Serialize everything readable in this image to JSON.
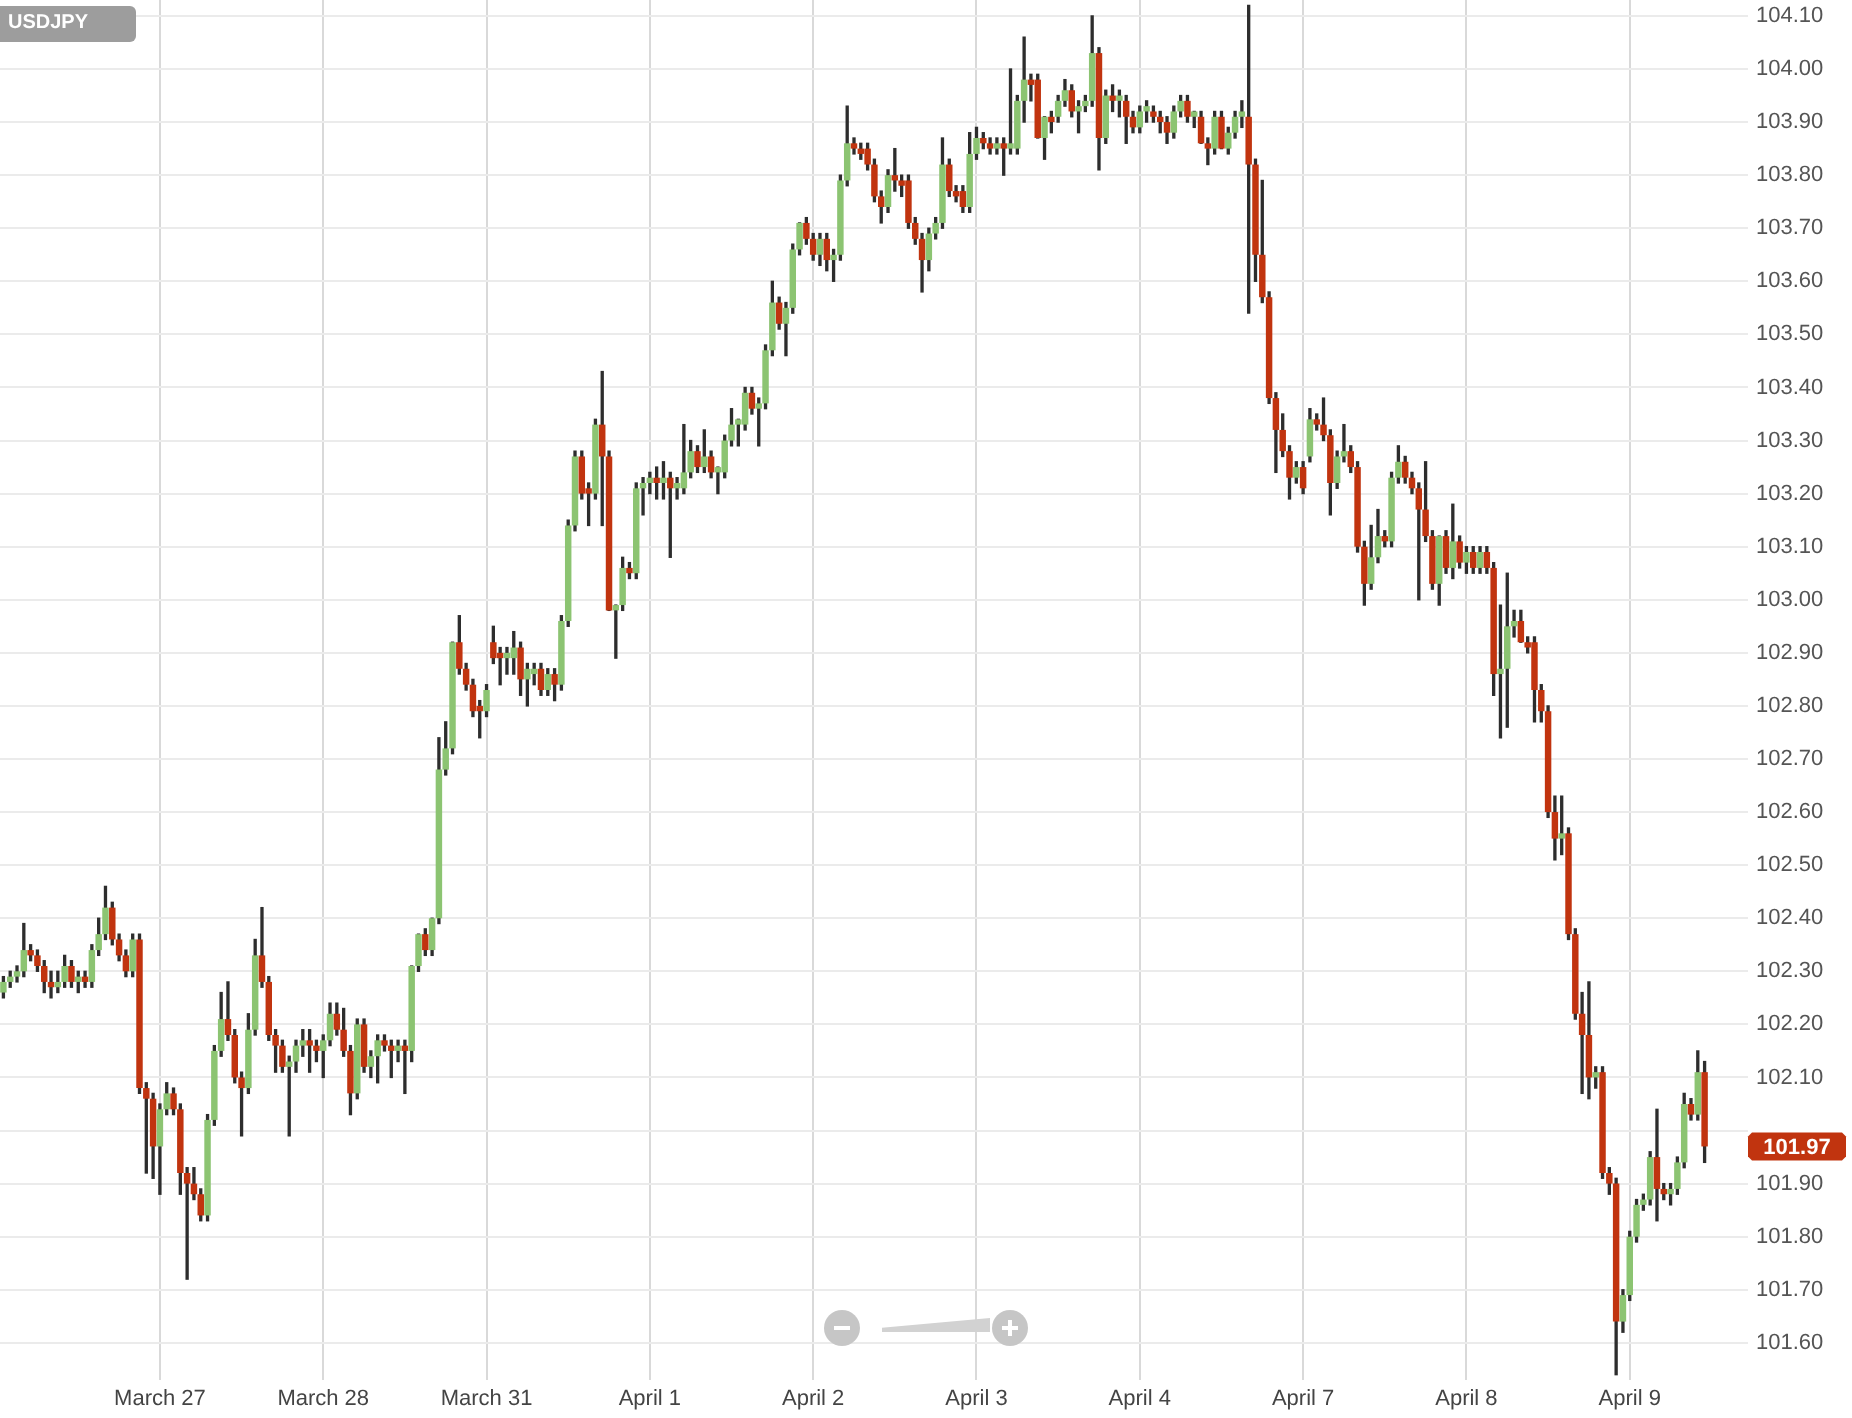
{
  "chart_data": {
    "type": "candlestick",
    "title": "USDJPY",
    "categories": [
      null,
      null,
      null,
      null,
      null,
      null,
      null,
      null,
      null,
      null,
      null,
      null,
      null,
      null,
      null,
      null,
      null,
      null,
      null,
      null,
      null,
      null,
      null,
      "March 27",
      null,
      null,
      null,
      null,
      null,
      null,
      null,
      null,
      null,
      null,
      null,
      null,
      null,
      null,
      null,
      null,
      null,
      null,
      null,
      null,
      null,
      null,
      null,
      "March 28",
      null,
      null,
      null,
      null,
      null,
      null,
      null,
      null,
      null,
      null,
      null,
      null,
      null,
      null,
      null,
      null,
      null,
      null,
      null,
      null,
      null,
      null,
      null,
      "March 31",
      null,
      null,
      null,
      null,
      null,
      null,
      null,
      null,
      null,
      null,
      null,
      null,
      null,
      null,
      null,
      null,
      null,
      null,
      null,
      null,
      null,
      null,
      null,
      "April 1",
      null,
      null,
      null,
      null,
      null,
      null,
      null,
      null,
      null,
      null,
      null,
      null,
      null,
      null,
      null,
      null,
      null,
      null,
      null,
      null,
      null,
      null,
      null,
      "April 2",
      null,
      null,
      null,
      null,
      null,
      null,
      null,
      null,
      null,
      null,
      null,
      null,
      null,
      null,
      null,
      null,
      null,
      null,
      null,
      null,
      null,
      null,
      null,
      "April 3",
      null,
      null,
      null,
      null,
      null,
      null,
      null,
      null,
      null,
      null,
      null,
      null,
      null,
      null,
      null,
      null,
      null,
      null,
      null,
      null,
      null,
      null,
      null,
      "April 4",
      null,
      null,
      null,
      null,
      null,
      null,
      null,
      null,
      null,
      null,
      null,
      null,
      null,
      null,
      null,
      null,
      null,
      null,
      null,
      null,
      null,
      null,
      null,
      "April 7",
      null,
      null,
      null,
      null,
      null,
      null,
      null,
      null,
      null,
      null,
      null,
      null,
      null,
      null,
      null,
      null,
      null,
      null,
      null,
      null,
      null,
      null,
      null,
      "April 8",
      null,
      null,
      null,
      null,
      null,
      null,
      null,
      null,
      null,
      null,
      null,
      null,
      null,
      null,
      null,
      null,
      null,
      null,
      null,
      null,
      null,
      null,
      null,
      "April 9",
      null,
      null,
      null,
      null,
      null,
      null,
      null,
      null,
      null,
      null,
      null
    ],
    "ohlc": [
      [
        102.26,
        102.29,
        102.25,
        102.28
      ],
      [
        102.28,
        102.3,
        102.27,
        102.29
      ],
      [
        102.29,
        102.31,
        102.28,
        102.3
      ],
      [
        102.3,
        102.39,
        102.29,
        102.34
      ],
      [
        102.34,
        102.35,
        102.32,
        102.33
      ],
      [
        102.33,
        102.34,
        102.3,
        102.31
      ],
      [
        102.31,
        102.32,
        102.26,
        102.28
      ],
      [
        102.28,
        102.3,
        102.25,
        102.27
      ],
      [
        102.27,
        102.3,
        102.26,
        102.28
      ],
      [
        102.28,
        102.33,
        102.27,
        102.31
      ],
      [
        102.31,
        102.32,
        102.27,
        102.28
      ],
      [
        102.28,
        102.3,
        102.26,
        102.29
      ],
      [
        102.29,
        102.3,
        102.27,
        102.28
      ],
      [
        102.28,
        102.35,
        102.27,
        102.34
      ],
      [
        102.34,
        102.4,
        102.33,
        102.37
      ],
      [
        102.37,
        102.46,
        102.36,
        102.42
      ],
      [
        102.42,
        102.43,
        102.35,
        102.36
      ],
      [
        102.36,
        102.37,
        102.32,
        102.33
      ],
      [
        102.33,
        102.34,
        102.29,
        102.3
      ],
      [
        102.3,
        102.37,
        102.29,
        102.36
      ],
      [
        102.36,
        102.37,
        102.07,
        102.08
      ],
      [
        102.08,
        102.09,
        101.92,
        102.06
      ],
      [
        102.06,
        102.07,
        101.91,
        101.97
      ],
      [
        101.97,
        102.05,
        101.88,
        102.04
      ],
      [
        102.04,
        102.09,
        102.03,
        102.07
      ],
      [
        102.07,
        102.08,
        102.03,
        102.04
      ],
      [
        102.04,
        102.05,
        101.88,
        101.92
      ],
      [
        101.92,
        101.93,
        101.72,
        101.9
      ],
      [
        101.9,
        101.93,
        101.87,
        101.88
      ],
      [
        101.88,
        101.89,
        101.83,
        101.84
      ],
      [
        101.84,
        102.03,
        101.83,
        102.02
      ],
      [
        102.02,
        102.16,
        102.01,
        102.15
      ],
      [
        102.15,
        102.26,
        102.14,
        102.21
      ],
      [
        102.21,
        102.28,
        102.17,
        102.18
      ],
      [
        102.18,
        102.19,
        102.09,
        102.1
      ],
      [
        102.1,
        102.11,
        101.99,
        102.08
      ],
      [
        102.08,
        102.22,
        102.07,
        102.19
      ],
      [
        102.19,
        102.36,
        102.18,
        102.33
      ],
      [
        102.33,
        102.42,
        102.27,
        102.28
      ],
      [
        102.28,
        102.29,
        102.17,
        102.18
      ],
      [
        102.18,
        102.19,
        102.11,
        102.16
      ],
      [
        102.16,
        102.17,
        102.11,
        102.12
      ],
      [
        102.12,
        102.14,
        101.99,
        102.13
      ],
      [
        102.13,
        102.17,
        102.11,
        102.16
      ],
      [
        102.16,
        102.19,
        102.14,
        102.17
      ],
      [
        102.17,
        102.19,
        102.11,
        102.16
      ],
      [
        102.16,
        102.17,
        102.13,
        102.15
      ],
      [
        102.15,
        102.18,
        102.1,
        102.17
      ],
      [
        102.17,
        102.24,
        102.16,
        102.22
      ],
      [
        102.22,
        102.24,
        102.18,
        102.19
      ],
      [
        102.19,
        102.23,
        102.14,
        102.15
      ],
      [
        102.15,
        102.16,
        102.03,
        102.07
      ],
      [
        102.07,
        102.21,
        102.06,
        102.2
      ],
      [
        102.2,
        102.21,
        102.11,
        102.12
      ],
      [
        102.12,
        102.15,
        102.1,
        102.14
      ],
      [
        102.14,
        102.18,
        102.09,
        102.17
      ],
      [
        102.17,
        102.18,
        102.15,
        102.16
      ],
      [
        102.16,
        102.17,
        102.1,
        102.15
      ],
      [
        102.15,
        102.17,
        102.13,
        102.16
      ],
      [
        102.16,
        102.17,
        102.07,
        102.15
      ],
      [
        102.15,
        102.31,
        102.13,
        102.31
      ],
      [
        102.31,
        102.37,
        102.3,
        102.37
      ],
      [
        102.37,
        102.38,
        102.33,
        102.34
      ],
      [
        102.34,
        102.4,
        102.33,
        102.4
      ],
      [
        102.4,
        102.74,
        102.39,
        102.68
      ],
      [
        102.68,
        102.77,
        102.67,
        102.72
      ],
      [
        102.72,
        102.92,
        102.71,
        102.92
      ],
      [
        102.92,
        102.97,
        102.86,
        102.87
      ],
      [
        102.87,
        102.88,
        102.83,
        102.84
      ],
      [
        102.84,
        102.85,
        102.78,
        102.79
      ],
      [
        102.8,
        102.81,
        102.74,
        102.79
      ],
      [
        102.79,
        102.84,
        102.78,
        102.83
      ],
      [
        102.92,
        102.95,
        102.88,
        102.89
      ],
      [
        102.9,
        102.91,
        102.84,
        102.89
      ],
      [
        102.89,
        102.91,
        102.86,
        102.9
      ],
      [
        102.89,
        102.94,
        102.86,
        102.91
      ],
      [
        102.91,
        102.92,
        102.82,
        102.85
      ],
      [
        102.85,
        102.88,
        102.8,
        102.87
      ],
      [
        102.86,
        102.88,
        102.84,
        102.87
      ],
      [
        102.87,
        102.88,
        102.82,
        102.83
      ],
      [
        102.83,
        102.87,
        102.82,
        102.86
      ],
      [
        102.86,
        102.87,
        102.81,
        102.84
      ],
      [
        102.84,
        102.97,
        102.83,
        102.96
      ],
      [
        102.96,
        103.15,
        102.95,
        103.14
      ],
      [
        103.14,
        103.28,
        103.13,
        103.27
      ],
      [
        103.27,
        103.28,
        103.19,
        103.2
      ],
      [
        103.21,
        103.22,
        103.14,
        103.2
      ],
      [
        103.2,
        103.34,
        103.19,
        103.33
      ],
      [
        103.33,
        103.43,
        103.14,
        103.27
      ],
      [
        103.27,
        103.28,
        102.98,
        102.98
      ],
      [
        102.98,
        102.99,
        102.89,
        102.99
      ],
      [
        102.99,
        103.08,
        102.98,
        103.06
      ],
      [
        103.06,
        103.07,
        103.04,
        103.05
      ],
      [
        103.05,
        103.22,
        103.04,
        103.21
      ],
      [
        103.21,
        103.23,
        103.16,
        103.22
      ],
      [
        103.22,
        103.24,
        103.2,
        103.23
      ],
      [
        103.23,
        103.25,
        103.19,
        103.22
      ],
      [
        103.22,
        103.26,
        103.19,
        103.23
      ],
      [
        103.23,
        103.24,
        103.08,
        103.21
      ],
      [
        103.21,
        103.23,
        103.19,
        103.22
      ],
      [
        103.21,
        103.33,
        103.2,
        103.24
      ],
      [
        103.24,
        103.3,
        103.23,
        103.28
      ],
      [
        103.28,
        103.29,
        103.24,
        103.25
      ],
      [
        103.25,
        103.32,
        103.24,
        103.27
      ],
      [
        103.27,
        103.28,
        103.23,
        103.24
      ],
      [
        103.24,
        103.25,
        103.2,
        103.25
      ],
      [
        103.24,
        103.31,
        103.23,
        103.3
      ],
      [
        103.3,
        103.36,
        103.29,
        103.33
      ],
      [
        103.33,
        103.34,
        103.29,
        103.34
      ],
      [
        103.33,
        103.4,
        103.32,
        103.39
      ],
      [
        103.39,
        103.4,
        103.35,
        103.36
      ],
      [
        103.36,
        103.38,
        103.29,
        103.37
      ],
      [
        103.37,
        103.48,
        103.36,
        103.47
      ],
      [
        103.47,
        103.6,
        103.46,
        103.56
      ],
      [
        103.56,
        103.57,
        103.51,
        103.52
      ],
      [
        103.52,
        103.56,
        103.46,
        103.55
      ],
      [
        103.55,
        103.67,
        103.54,
        103.66
      ],
      [
        103.66,
        103.71,
        103.65,
        103.71
      ],
      [
        103.71,
        103.72,
        103.67,
        103.68
      ],
      [
        103.68,
        103.69,
        103.64,
        103.65
      ],
      [
        103.65,
        103.69,
        103.63,
        103.68
      ],
      [
        103.68,
        103.69,
        103.62,
        103.64
      ],
      [
        103.64,
        103.66,
        103.6,
        103.65
      ],
      [
        103.65,
        103.8,
        103.64,
        103.79
      ],
      [
        103.79,
        103.93,
        103.78,
        103.86
      ],
      [
        103.86,
        103.87,
        103.84,
        103.85
      ],
      [
        103.85,
        103.86,
        103.83,
        103.84
      ],
      [
        103.85,
        103.86,
        103.81,
        103.82
      ],
      [
        103.82,
        103.83,
        103.75,
        103.76
      ],
      [
        103.76,
        103.77,
        103.71,
        103.74
      ],
      [
        103.74,
        103.81,
        103.73,
        103.8
      ],
      [
        103.8,
        103.85,
        103.77,
        103.79
      ],
      [
        103.79,
        103.8,
        103.76,
        103.78
      ],
      [
        103.79,
        103.8,
        103.7,
        103.71
      ],
      [
        103.71,
        103.72,
        103.67,
        103.68
      ],
      [
        103.68,
        103.69,
        103.58,
        103.64
      ],
      [
        103.64,
        103.7,
        103.62,
        103.69
      ],
      [
        103.69,
        103.72,
        103.68,
        103.71
      ],
      [
        103.71,
        103.87,
        103.7,
        103.82
      ],
      [
        103.82,
        103.83,
        103.76,
        103.77
      ],
      [
        103.77,
        103.78,
        103.75,
        103.76
      ],
      [
        103.77,
        103.78,
        103.73,
        103.74
      ],
      [
        103.74,
        103.88,
        103.73,
        103.84
      ],
      [
        103.84,
        103.89,
        103.83,
        103.87
      ],
      [
        103.87,
        103.88,
        103.85,
        103.86
      ],
      [
        103.86,
        103.87,
        103.84,
        103.85
      ],
      [
        103.85,
        103.87,
        103.84,
        103.86
      ],
      [
        103.86,
        103.87,
        103.8,
        103.85
      ],
      [
        103.85,
        104.0,
        103.84,
        103.86
      ],
      [
        103.85,
        103.95,
        103.84,
        103.94
      ],
      [
        103.94,
        104.06,
        103.9,
        103.98
      ],
      [
        103.98,
        103.99,
        103.94,
        103.97
      ],
      [
        103.98,
        103.99,
        103.87,
        103.87
      ],
      [
        103.87,
        103.91,
        103.83,
        103.91
      ],
      [
        103.91,
        103.92,
        103.88,
        103.9
      ],
      [
        103.91,
        103.95,
        103.9,
        103.94
      ],
      [
        103.94,
        103.98,
        103.93,
        103.96
      ],
      [
        103.96,
        103.97,
        103.91,
        103.92
      ],
      [
        103.92,
        103.94,
        103.88,
        103.93
      ],
      [
        103.93,
        103.95,
        103.92,
        103.94
      ],
      [
        103.94,
        104.1,
        103.93,
        104.03
      ],
      [
        104.03,
        104.04,
        103.81,
        103.87
      ],
      [
        103.87,
        103.96,
        103.86,
        103.95
      ],
      [
        103.95,
        103.97,
        103.92,
        103.94
      ],
      [
        103.94,
        103.96,
        103.91,
        103.95
      ],
      [
        103.94,
        103.95,
        103.86,
        103.91
      ],
      [
        103.91,
        103.92,
        103.88,
        103.89
      ],
      [
        103.89,
        103.93,
        103.88,
        103.92
      ],
      [
        103.92,
        103.94,
        103.9,
        103.93
      ],
      [
        103.92,
        103.93,
        103.9,
        103.91
      ],
      [
        103.91,
        103.92,
        103.88,
        103.9
      ],
      [
        103.9,
        103.91,
        103.86,
        103.88
      ],
      [
        103.88,
        103.93,
        103.87,
        103.92
      ],
      [
        103.92,
        103.95,
        103.91,
        103.94
      ],
      [
        103.94,
        103.95,
        103.9,
        103.91
      ],
      [
        103.91,
        103.92,
        103.89,
        103.92
      ],
      [
        103.91,
        103.92,
        103.86,
        103.86
      ],
      [
        103.86,
        103.87,
        103.82,
        103.85
      ],
      [
        103.85,
        103.92,
        103.84,
        103.91
      ],
      [
        103.91,
        103.92,
        103.85,
        103.85
      ],
      [
        103.85,
        103.89,
        103.84,
        103.88
      ],
      [
        103.88,
        103.92,
        103.87,
        103.91
      ],
      [
        103.91,
        103.94,
        103.89,
        103.92
      ],
      [
        103.91,
        104.12,
        103.54,
        103.82
      ],
      [
        103.82,
        103.83,
        103.6,
        103.65
      ],
      [
        103.65,
        103.79,
        103.56,
        103.57
      ],
      [
        103.57,
        103.58,
        103.37,
        103.38
      ],
      [
        103.38,
        103.39,
        103.24,
        103.32
      ],
      [
        103.32,
        103.35,
        103.27,
        103.28
      ],
      [
        103.28,
        103.29,
        103.19,
        103.23
      ],
      [
        103.23,
        103.26,
        103.22,
        103.25
      ],
      [
        103.25,
        103.26,
        103.2,
        103.21
      ],
      [
        103.27,
        103.36,
        103.26,
        103.34
      ],
      [
        103.34,
        103.35,
        103.32,
        103.33
      ],
      [
        103.33,
        103.38,
        103.3,
        103.31
      ],
      [
        103.31,
        103.32,
        103.16,
        103.22
      ],
      [
        103.22,
        103.28,
        103.21,
        103.27
      ],
      [
        103.27,
        103.33,
        103.26,
        103.28
      ],
      [
        103.28,
        103.29,
        103.24,
        103.25
      ],
      [
        103.25,
        103.26,
        103.09,
        103.1
      ],
      [
        103.1,
        103.11,
        102.99,
        103.03
      ],
      [
        103.03,
        103.14,
        103.02,
        103.08
      ],
      [
        103.08,
        103.17,
        103.07,
        103.12
      ],
      [
        103.12,
        103.13,
        103.1,
        103.11
      ],
      [
        103.11,
        103.24,
        103.1,
        103.23
      ],
      [
        103.23,
        103.29,
        103.22,
        103.26
      ],
      [
        103.26,
        103.27,
        103.22,
        103.23
      ],
      [
        103.23,
        103.24,
        103.2,
        103.21
      ],
      [
        103.21,
        103.22,
        103.0,
        103.17
      ],
      [
        103.17,
        103.26,
        103.11,
        103.12
      ],
      [
        103.12,
        103.13,
        103.02,
        103.03
      ],
      [
        103.03,
        103.12,
        102.99,
        103.12
      ],
      [
        103.12,
        103.13,
        103.05,
        103.06
      ],
      [
        103.06,
        103.18,
        103.04,
        103.11
      ],
      [
        103.11,
        103.12,
        103.06,
        103.07
      ],
      [
        103.07,
        103.1,
        103.05,
        103.09
      ],
      [
        103.09,
        103.1,
        103.05,
        103.06
      ],
      [
        103.06,
        103.1,
        103.05,
        103.09
      ],
      [
        103.09,
        103.1,
        103.05,
        103.06
      ],
      [
        103.06,
        103.07,
        102.82,
        102.86
      ],
      [
        102.86,
        102.99,
        102.74,
        102.87
      ],
      [
        102.87,
        103.05,
        102.76,
        102.95
      ],
      [
        102.95,
        102.98,
        102.93,
        102.96
      ],
      [
        102.96,
        102.98,
        102.92,
        102.92
      ],
      [
        102.92,
        102.93,
        102.9,
        102.91
      ],
      [
        102.92,
        102.93,
        102.77,
        102.83
      ],
      [
        102.83,
        102.84,
        102.77,
        102.79
      ],
      [
        102.79,
        102.8,
        102.59,
        102.6
      ],
      [
        102.6,
        102.63,
        102.51,
        102.55
      ],
      [
        102.55,
        102.63,
        102.52,
        102.56
      ],
      [
        102.56,
        102.57,
        102.36,
        102.37
      ],
      [
        102.37,
        102.38,
        102.21,
        102.22
      ],
      [
        102.22,
        102.26,
        102.07,
        102.18
      ],
      [
        102.18,
        102.28,
        102.06,
        102.1
      ],
      [
        102.1,
        102.12,
        102.08,
        102.11
      ],
      [
        102.11,
        102.12,
        101.91,
        101.92
      ],
      [
        101.92,
        101.93,
        101.88,
        101.9
      ],
      [
        101.9,
        101.91,
        101.54,
        101.64
      ],
      [
        101.64,
        101.7,
        101.62,
        101.69
      ],
      [
        101.69,
        101.81,
        101.68,
        101.8
      ],
      [
        101.8,
        101.87,
        101.79,
        101.86
      ],
      [
        101.86,
        101.88,
        101.85,
        101.87
      ],
      [
        101.87,
        101.96,
        101.86,
        101.95
      ],
      [
        101.95,
        102.04,
        101.83,
        101.89
      ],
      [
        101.89,
        101.9,
        101.87,
        101.88
      ],
      [
        101.88,
        101.9,
        101.86,
        101.89
      ],
      [
        101.89,
        101.95,
        101.88,
        101.94
      ],
      [
        101.94,
        102.07,
        101.93,
        102.05
      ],
      [
        102.05,
        102.06,
        102.02,
        102.03
      ],
      [
        102.03,
        102.15,
        102.02,
        102.11
      ],
      [
        102.11,
        102.13,
        101.94,
        101.97
      ]
    ],
    "ylim": [
      101.53,
      104.13
    ],
    "yticks": [
      {
        "value": 101.6,
        "label": "101.60"
      },
      {
        "value": 101.7,
        "label": "101.70"
      },
      {
        "value": 101.8,
        "label": "101.80"
      },
      {
        "value": 101.9,
        "label": "101.90"
      },
      {
        "value": 102,
        "label": null
      },
      {
        "value": 102.1,
        "label": "102.10"
      },
      {
        "value": 102.2,
        "label": "102.20"
      },
      {
        "value": 102.3,
        "label": "102.30"
      },
      {
        "value": 102.4,
        "label": "102.40"
      },
      {
        "value": 102.5,
        "label": "102.50"
      },
      {
        "value": 102.6,
        "label": "102.60"
      },
      {
        "value": 102.7,
        "label": "102.70"
      },
      {
        "value": 102.8,
        "label": "102.80"
      },
      {
        "value": 102.9,
        "label": "102.90"
      },
      {
        "value": 103,
        "label": "103.00"
      },
      {
        "value": 103.1,
        "label": "103.10"
      },
      {
        "value": 103.2,
        "label": "103.20"
      },
      {
        "value": 103.3,
        "label": "103.30"
      },
      {
        "value": 103.4,
        "label": "103.40"
      },
      {
        "value": 103.5,
        "label": "103.50"
      },
      {
        "value": 103.6,
        "label": "103.60"
      },
      {
        "value": 103.7,
        "label": "103.70"
      },
      {
        "value": 103.8,
        "label": "103.80"
      },
      {
        "value": 103.9,
        "label": "103.90"
      },
      {
        "value": 104,
        "label": "104.00"
      },
      {
        "value": 104.1,
        "label": "104.10"
      }
    ],
    "grid": true,
    "annotations": [
      "101.97"
    ]
  }
}
